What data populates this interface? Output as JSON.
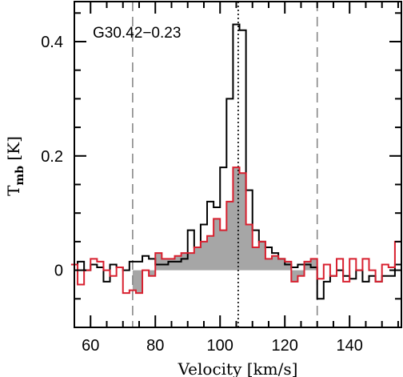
{
  "chart_data": {
    "type": "line",
    "style": "histogram steps",
    "xlabel": "Velocity [km/s]",
    "ylabel": {
      "main": "T",
      "sub": "mb",
      "unit": " [K]"
    },
    "annotation": "G30.42−0.23",
    "xlim": [
      55,
      156
    ],
    "ylim": [
      -0.1,
      0.47
    ],
    "x_ticks": [
      60,
      80,
      100,
      120,
      140
    ],
    "x_tick_labels": [
      "60",
      "80",
      "100",
      "120",
      "140"
    ],
    "y_ticks": [
      0,
      0.2,
      0.4
    ],
    "y_tick_labels": [
      "0",
      "0.2",
      "0.4"
    ],
    "grid": false,
    "vertical_lines": [
      {
        "x": 73,
        "style": "dashed",
        "color": "#888888"
      },
      {
        "x": 105.6,
        "style": "dotted",
        "color": "#000000"
      },
      {
        "x": 130,
        "style": "dashed",
        "color": "#888888"
      }
    ],
    "fill_range": [
      73,
      130
    ],
    "fill_color": "#a6a6a6",
    "series": [
      {
        "color": "#000000",
        "x": [
          55,
          57,
          59,
          61,
          63,
          65,
          67,
          69,
          71,
          73,
          75,
          77,
          79,
          81,
          83,
          85,
          87,
          89,
          91,
          93,
          95,
          97,
          99,
          101,
          103,
          105,
          107,
          109,
          111,
          113,
          115,
          117,
          119,
          121,
          123,
          125,
          127,
          129,
          131,
          133,
          135,
          137,
          139,
          141,
          143,
          145,
          147,
          149,
          151,
          153,
          155
        ],
        "values": [
          0.01,
          0.015,
          0.0,
          0.01,
          0.005,
          -0.02,
          0.01,
          0.005,
          0.0,
          0.015,
          0.015,
          0.025,
          0.02,
          0.01,
          0.01,
          0.015,
          0.015,
          0.02,
          0.07,
          0.04,
          0.08,
          0.12,
          0.11,
          0.18,
          0.3,
          0.43,
          0.42,
          0.14,
          0.07,
          0.05,
          0.04,
          0.03,
          0.02,
          0.01,
          0.005,
          0.01,
          0.01,
          0.005,
          -0.05,
          -0.02,
          -0.01,
          0.0,
          -0.01,
          -0.015,
          0.0,
          -0.02,
          -0.01,
          -0.02,
          -0.01,
          -0.01,
          0.01
        ]
      },
      {
        "color": "#d8202f",
        "x": [
          55,
          57,
          59,
          61,
          63,
          65,
          67,
          69,
          71,
          73,
          75,
          77,
          79,
          81,
          83,
          85,
          87,
          89,
          91,
          93,
          95,
          97,
          99,
          101,
          103,
          105,
          107,
          109,
          111,
          113,
          115,
          117,
          119,
          121,
          123,
          125,
          127,
          129,
          131,
          133,
          135,
          137,
          139,
          141,
          143,
          145,
          147,
          149,
          151,
          153,
          155
        ],
        "values": [
          0.01,
          -0.025,
          0.0,
          0.02,
          0.015,
          0.0,
          -0.01,
          0.005,
          -0.04,
          -0.035,
          -0.04,
          0.0,
          -0.01,
          0.03,
          0.02,
          0.02,
          0.025,
          0.03,
          0.03,
          0.04,
          0.05,
          0.06,
          0.09,
          0.07,
          0.12,
          0.18,
          0.17,
          0.08,
          0.04,
          0.05,
          0.02,
          0.025,
          0.02,
          0.015,
          -0.02,
          -0.01,
          0.015,
          0.02,
          -0.015,
          0.01,
          -0.01,
          0.02,
          -0.02,
          0.02,
          0.0,
          0.02,
          0.0,
          -0.02,
          0.01,
          0.005,
          0.05
        ]
      }
    ]
  }
}
